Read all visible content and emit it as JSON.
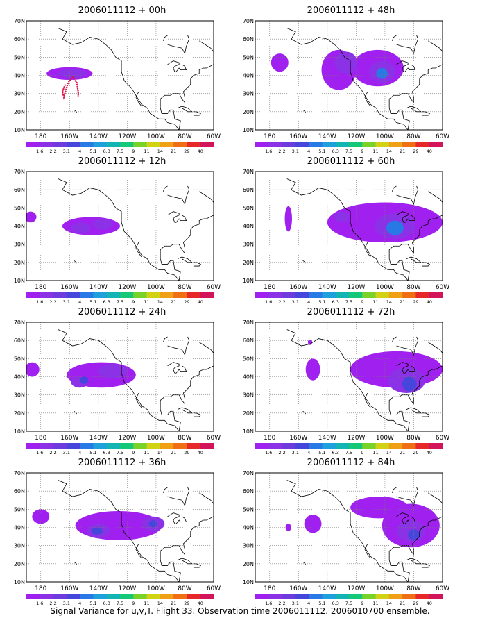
{
  "footer": "Signal Variance for u,v,T. Flight 33. Observation time 2006011112. 2006010700 ensemble.",
  "colorbar": {
    "labels": [
      "1.6",
      "2.2",
      "3.1",
      "4",
      "5.1",
      "6.3",
      "7.5",
      "9",
      "11",
      "14",
      "21",
      "29",
      "40"
    ],
    "colors": [
      "#a020f0",
      "#8c32e6",
      "#6e3cdc",
      "#4646dc",
      "#2878e6",
      "#1ea0dc",
      "#14b4b4",
      "#14c878",
      "#78d228",
      "#d2d214",
      "#f0a014",
      "#f06e14",
      "#e62828",
      "#d2145a"
    ]
  },
  "chart_data": [
    {
      "type": "heatmap",
      "title": "2006011112 + 00h",
      "xlabel": "",
      "ylabel": "",
      "x_ticks": [
        "180",
        "160W",
        "140W",
        "120W",
        "100W",
        "80W",
        "60W"
      ],
      "y_ticks": [
        "10N",
        "20N",
        "30N",
        "40N",
        "50N",
        "60N",
        "70N"
      ],
      "xlim": [
        -190,
        -60
      ],
      "ylim": [
        10,
        70
      ],
      "grid": true,
      "blobs": [
        {
          "lon": -160,
          "lat": 41,
          "rx": 16,
          "ry": 3.5,
          "level": 0
        },
        {
          "lon": -158,
          "lat": 41,
          "rx": 10,
          "ry": 2.5,
          "level": 1
        }
      ],
      "flight_track": [
        [
          -163,
          35
        ],
        [
          -165,
          31
        ],
        [
          -164,
          28
        ],
        [
          -161,
          36
        ],
        [
          -158,
          39
        ],
        [
          -155,
          36
        ],
        [
          -154,
          31
        ],
        [
          -154,
          28
        ]
      ]
    },
    {
      "type": "heatmap",
      "title": "2006011112 + 48h",
      "xlabel": "",
      "ylabel": "",
      "x_ticks": [
        "180",
        "160W",
        "140W",
        "120W",
        "100W",
        "80W",
        "60W"
      ],
      "y_ticks": [
        "10N",
        "20N",
        "30N",
        "40N",
        "50N",
        "60N",
        "70N"
      ],
      "xlim": [
        -190,
        -60
      ],
      "ylim": [
        10,
        70
      ],
      "grid": true,
      "blobs": [
        {
          "lon": -173,
          "lat": 47,
          "rx": 6,
          "ry": 5,
          "level": 0
        },
        {
          "lon": -132,
          "lat": 43,
          "rx": 12,
          "ry": 11,
          "level": 0
        },
        {
          "lon": -105,
          "lat": 44,
          "rx": 18,
          "ry": 10,
          "level": 0
        },
        {
          "lon": -127,
          "lat": 47,
          "rx": 8,
          "ry": 6,
          "level": 1
        },
        {
          "lon": -102,
          "lat": 42,
          "rx": 9,
          "ry": 6,
          "level": 1
        },
        {
          "lon": -102,
          "lat": 41,
          "rx": 4,
          "ry": 3,
          "level": 4
        }
      ]
    },
    {
      "type": "heatmap",
      "title": "2006011112 + 12h",
      "xlabel": "",
      "ylabel": "",
      "x_ticks": [
        "180",
        "160W",
        "140W",
        "120W",
        "100W",
        "80W",
        "60W"
      ],
      "y_ticks": [
        "10N",
        "20N",
        "30N",
        "40N",
        "50N",
        "60N",
        "70N"
      ],
      "xlim": [
        -190,
        -60
      ],
      "ylim": [
        10,
        70
      ],
      "grid": true,
      "blobs": [
        {
          "lon": -187,
          "lat": 45,
          "rx": 4,
          "ry": 3,
          "level": 0
        },
        {
          "lon": -145,
          "lat": 40,
          "rx": 20,
          "ry": 5,
          "level": 0
        },
        {
          "lon": -152,
          "lat": 39,
          "rx": 7,
          "ry": 3,
          "level": 1
        },
        {
          "lon": -137,
          "lat": 41,
          "rx": 7,
          "ry": 3,
          "level": 1
        }
      ]
    },
    {
      "type": "heatmap",
      "title": "2006011112 + 60h",
      "xlabel": "",
      "ylabel": "",
      "x_ticks": [
        "180",
        "160W",
        "140W",
        "120W",
        "100W",
        "80W",
        "60W"
      ],
      "y_ticks": [
        "10N",
        "20N",
        "30N",
        "40N",
        "50N",
        "60N",
        "70N"
      ],
      "xlim": [
        -190,
        -60
      ],
      "ylim": [
        10,
        70
      ],
      "grid": true,
      "blobs": [
        {
          "lon": -167,
          "lat": 44,
          "rx": 2.5,
          "ry": 7,
          "level": 0
        },
        {
          "lon": -100,
          "lat": 42,
          "rx": 40,
          "ry": 11,
          "level": 0
        },
        {
          "lon": -93,
          "lat": 40,
          "rx": 14,
          "ry": 7,
          "level": 1
        },
        {
          "lon": -93,
          "lat": 39,
          "rx": 6,
          "ry": 4,
          "level": 4
        },
        {
          "lon": -130,
          "lat": 45,
          "rx": 5,
          "ry": 3,
          "level": 1
        }
      ]
    },
    {
      "type": "heatmap",
      "title": "2006011112 + 24h",
      "xlabel": "",
      "ylabel": "",
      "x_ticks": [
        "180",
        "160W",
        "140W",
        "120W",
        "100W",
        "80W",
        "60W"
      ],
      "y_ticks": [
        "10N",
        "20N",
        "30N",
        "40N",
        "50N",
        "60N",
        "70N"
      ],
      "xlim": [
        -190,
        -60
      ],
      "ylim": [
        10,
        70
      ],
      "grid": true,
      "blobs": [
        {
          "lon": -186,
          "lat": 44,
          "rx": 5,
          "ry": 4,
          "level": 0
        },
        {
          "lon": -138,
          "lat": 41,
          "rx": 24,
          "ry": 7,
          "level": 0
        },
        {
          "lon": -130,
          "lat": 43,
          "rx": 10,
          "ry": 4,
          "level": 1
        },
        {
          "lon": -153,
          "lat": 37,
          "rx": 6,
          "ry": 3,
          "level": 1
        },
        {
          "lon": -150,
          "lat": 38,
          "rx": 3,
          "ry": 2,
          "level": 3
        }
      ]
    },
    {
      "type": "heatmap",
      "title": "2006011112 + 72h",
      "xlabel": "",
      "ylabel": "",
      "x_ticks": [
        "180",
        "160W",
        "140W",
        "120W",
        "100W",
        "80W",
        "60W"
      ],
      "y_ticks": [
        "10N",
        "20N",
        "30N",
        "40N",
        "50N",
        "60N",
        "70N"
      ],
      "xlim": [
        -190,
        -60
      ],
      "ylim": [
        10,
        70
      ],
      "grid": true,
      "blobs": [
        {
          "lon": -150,
          "lat": 44,
          "rx": 5,
          "ry": 6,
          "level": 0
        },
        {
          "lon": -92,
          "lat": 44,
          "rx": 32,
          "ry": 10,
          "level": 0
        },
        {
          "lon": -85,
          "lat": 38,
          "rx": 13,
          "ry": 7,
          "level": 1
        },
        {
          "lon": -83,
          "lat": 36,
          "rx": 5,
          "ry": 4,
          "level": 3
        },
        {
          "lon": -152,
          "lat": 59,
          "rx": 1.5,
          "ry": 1.5,
          "level": 0
        }
      ]
    },
    {
      "type": "heatmap",
      "title": "2006011112 + 36h",
      "xlabel": "",
      "ylabel": "",
      "x_ticks": [
        "180",
        "160W",
        "140W",
        "120W",
        "100W",
        "80W",
        "60W"
      ],
      "y_ticks": [
        "10N",
        "20N",
        "30N",
        "40N",
        "50N",
        "60N",
        "70N"
      ],
      "xlim": [
        -190,
        -60
      ],
      "ylim": [
        10,
        70
      ],
      "grid": true,
      "blobs": [
        {
          "lon": -180,
          "lat": 46,
          "rx": 6,
          "ry": 4,
          "level": 0
        },
        {
          "lon": -126,
          "lat": 41,
          "rx": 30,
          "ry": 8,
          "level": 0
        },
        {
          "lon": -140,
          "lat": 38,
          "rx": 8,
          "ry": 4,
          "level": 1
        },
        {
          "lon": -102,
          "lat": 42,
          "rx": 8,
          "ry": 4,
          "level": 1
        },
        {
          "lon": -141,
          "lat": 38,
          "rx": 4,
          "ry": 2,
          "level": 3
        },
        {
          "lon": -102,
          "lat": 42,
          "rx": 3,
          "ry": 2,
          "level": 3
        }
      ]
    },
    {
      "type": "heatmap",
      "title": "2006011112 + 84h",
      "xlabel": "",
      "ylabel": "",
      "x_ticks": [
        "180",
        "160W",
        "140W",
        "120W",
        "100W",
        "80W",
        "60W"
      ],
      "y_ticks": [
        "10N",
        "20N",
        "30N",
        "40N",
        "50N",
        "60N",
        "70N"
      ],
      "xlim": [
        -190,
        -60
      ],
      "ylim": [
        10,
        70
      ],
      "grid": true,
      "blobs": [
        {
          "lon": -167,
          "lat": 40,
          "rx": 2,
          "ry": 2,
          "level": 0
        },
        {
          "lon": -150,
          "lat": 42,
          "rx": 6,
          "ry": 5,
          "level": 0
        },
        {
          "lon": -104,
          "lat": 51,
          "rx": 20,
          "ry": 6,
          "level": 0
        },
        {
          "lon": -82,
          "lat": 41,
          "rx": 20,
          "ry": 12,
          "level": 0
        },
        {
          "lon": -82,
          "lat": 38,
          "rx": 10,
          "ry": 6,
          "level": 1
        },
        {
          "lon": -80,
          "lat": 36,
          "rx": 4,
          "ry": 3,
          "level": 3
        }
      ]
    }
  ]
}
